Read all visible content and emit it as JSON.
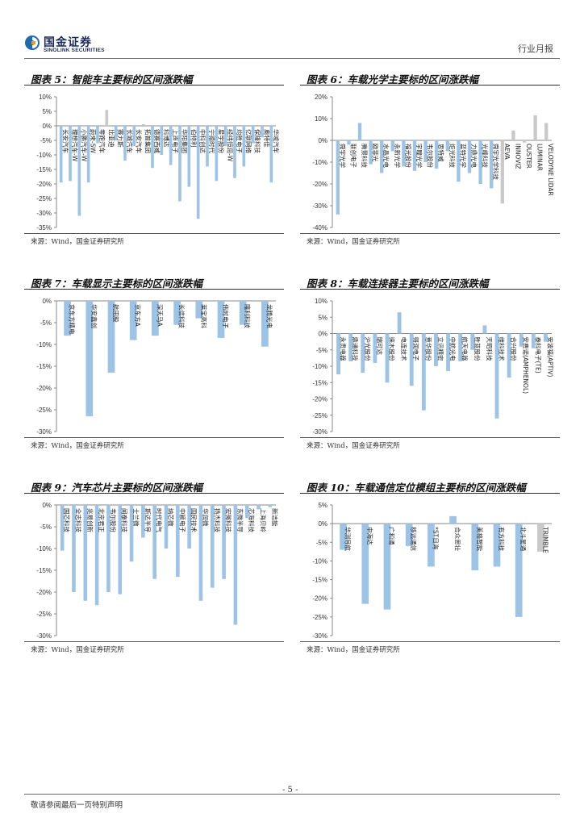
{
  "header": {
    "logo_cn": "国金证券",
    "logo_en": "SINOLINK SECURITIES",
    "report_type": "行业月报"
  },
  "footer": {
    "page_number": "- 5 -",
    "disclaimer": "敬请参阅最后一页特别声明"
  },
  "colors": {
    "bar": "#9dc3e6",
    "bar_alt": "#c9c9c9",
    "axis": "#888888",
    "text": "#222222"
  },
  "panels": [
    {
      "title": "图表 5：智能车主要标的区间涨跌幅",
      "source": "来源：Wind，国金证券研究所"
    },
    {
      "title": "图表 6：车载光学主要标的区间涨跌幅",
      "source": "来源：Wind，国金证券研究所"
    },
    {
      "title": "图表 7：车载显示主要标的区间涨跌幅",
      "source": "来源：Wind，国金证券研究所"
    },
    {
      "title": "图表 8：车载连接器主要标的区间涨跌幅",
      "source": "来源：Wind，国金证券研究所"
    },
    {
      "title": "图表 9：汽车芯片主要标的区间涨跌幅",
      "source": "来源：Wind，国金证券研究所"
    },
    {
      "title": "图表 10：车载通信定位模组主要标的区间涨跌幅",
      "source": "来源：Wind，国金证券研究所"
    }
  ],
  "chart_data": [
    {
      "type": "bar",
      "title": "智能车主要标的区间涨跌幅",
      "ylim": [
        -35,
        10
      ],
      "yticks": [
        10,
        5,
        0,
        -5,
        -10,
        -15,
        -20,
        -25,
        -30,
        -35
      ],
      "categories": [
        "长安汽车",
        "理想汽车-W",
        "小鹏汽车-W",
        "蔚来-SW",
        "零跑汽车",
        "比亚迪",
        "赛力斯",
        "长城汽车",
        "长安汽车",
        "拓普集团",
        "德赛西威",
        "科博达",
        "上声电子",
        "华阳集团",
        "伯特利",
        "中科创达",
        "宁德时代",
        "星宇股份",
        "经纬恒润-W",
        "均胜电子",
        "亿联网络",
        "保隆科技",
        "奥特佳",
        "华域汽车"
      ],
      "values": [
        -19.5,
        -19,
        -31,
        -19.5,
        -6,
        5.5,
        -5,
        -12,
        -7,
        0.5,
        -14.5,
        -10,
        -13.5,
        -26,
        -21,
        -32,
        -14,
        -19,
        -7,
        -18,
        -14,
        -6,
        -4,
        -19.5
      ],
      "highlight": [
        5
      ]
    },
    {
      "type": "bar",
      "title": "车载光学主要标的区间涨跌幅",
      "ylim": [
        -40,
        20
      ],
      "yticks": [
        20,
        10,
        0,
        -10,
        -20,
        -30,
        -40
      ],
      "categories": [
        "舜宇光学",
        "联创电子",
        "腾景科技",
        "欧菲光",
        "水晶光电",
        "永新光学",
        "福光股份",
        "宇瞳光学",
        "韦尔股份",
        "思特威",
        "炬光科技",
        "蓝特光学",
        "力鼎光电",
        "光峰科技",
        "舜宇光学科技",
        "AEVA",
        "INNOVIZ",
        "OUSTER",
        "LUMINAR",
        "VELODYNE LIDAR"
      ],
      "values": [
        -34,
        -2,
        8,
        -11,
        -15,
        -5,
        -12,
        -14,
        -10,
        -13,
        -5,
        -19,
        -15,
        -20,
        -22,
        -29,
        4.5,
        -1,
        11.5,
        8
      ],
      "highlight": [
        15,
        16,
        17,
        18,
        19
      ]
    },
    {
      "type": "bar",
      "title": "车载显示主要标的区间涨跌幅",
      "ylim": [
        -30,
        0
      ],
      "yticks": [
        0,
        -5,
        -10,
        -15,
        -20,
        -25,
        -30
      ],
      "categories": [
        "京东方精电",
        "华安鑫创",
        "航田股",
        "京东方A",
        "深天马A",
        "长信科技",
        "莱宝高科",
        "伟时电子",
        "隆利科技",
        "龙腾光电"
      ],
      "values": [
        -8,
        -26.5,
        -16.5,
        -9,
        -8,
        -5.5,
        -4,
        -8.5,
        -5.5,
        -10.5
      ],
      "highlight": []
    },
    {
      "type": "bar",
      "title": "车载连接器主要标的区间涨跌幅",
      "ylim": [
        -30,
        10
      ],
      "yticks": [
        10,
        5,
        0,
        -5,
        -10,
        -15,
        -20,
        -25,
        -30
      ],
      "categories": [
        "永贵电器",
        "鼎通科技",
        "沪光股份",
        "瑞可达",
        "徕木股份",
        "电连技术",
        "得润电子",
        "意华股份",
        "立讯精密",
        "中航光电",
        "航天电器",
        "胜蓝股份",
        "天昭科技",
        "维科技术",
        "合兴股份",
        "安费诺(AMPHENOL)",
        "泰科电子(TE)",
        "安波福(APTIV)"
      ],
      "values": [
        -12.5,
        -8.5,
        -12,
        -9,
        -15,
        6.5,
        -16,
        -23.5,
        -10,
        -11.5,
        -8.5,
        -5,
        2.5,
        -26,
        -13.5,
        -4,
        -4.5,
        -2.5
      ],
      "highlight": []
    },
    {
      "type": "bar",
      "title": "汽车芯片主要标的区间涨跌幅",
      "ylim": [
        -30,
        0
      ],
      "yticks": [
        0,
        -5,
        -10,
        -15,
        -20,
        -25,
        -30
      ],
      "categories": [
        "国芯科技",
        "全志科技",
        "兆易创新",
        "北京君正",
        "韦尔股份",
        "闻泰科技",
        "士兰微",
        "斯达半导",
        "时代电气",
        "纳芯微",
        "中颖电子",
        "国民技术",
        "华润微",
        "扬杰科技",
        "宏微科技",
        "东微半导",
        "芯海科技",
        "上海贝岭",
        "新洁能"
      ],
      "values": [
        -10.5,
        -20,
        -22,
        -23,
        -20,
        -20.5,
        -13,
        -7.5,
        -17,
        -10,
        -16.5,
        -10,
        -22,
        -19,
        -17,
        -27.5,
        -3,
        -1,
        -0.5
      ],
      "highlight": []
    },
    {
      "type": "bar",
      "title": "车载通信定位模组主要标的区间涨跌幅",
      "ylim": [
        -30,
        5
      ],
      "yticks": [
        5,
        0,
        -5,
        -10,
        -15,
        -20,
        -25,
        -30
      ],
      "categories": [
        "华测导航",
        "中海达",
        "广和通",
        "移远通信",
        "*ST日海",
        "合众思壮",
        "美格智能",
        "有方科技",
        "北斗星通",
        "TRIMBLE"
      ],
      "values": [
        -7,
        -21.5,
        -23,
        -6,
        -11.5,
        2,
        -12.5,
        -11.5,
        -25,
        -7.5
      ],
      "highlight": [
        9
      ]
    }
  ]
}
